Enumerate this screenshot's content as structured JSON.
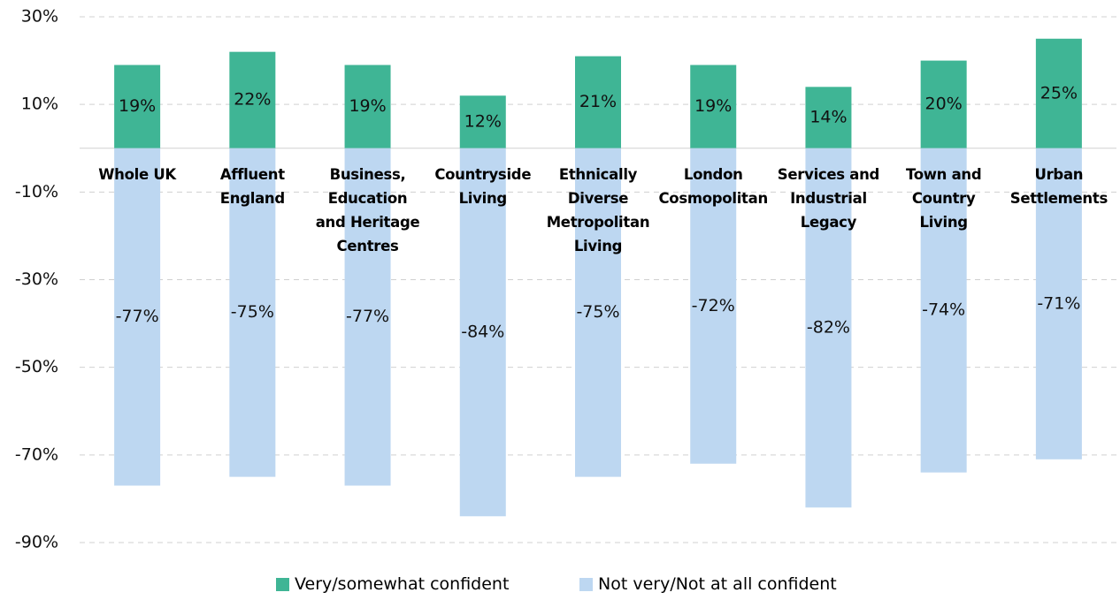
{
  "chart_data": {
    "type": "bar",
    "categories": [
      "Whole UK",
      "Affluent England",
      "Business, Education and Heritage Centres",
      "Countryside Living",
      "Ethnically Diverse Metropolitan Living",
      "London Cosmopolitan",
      "Services and Industrial Legacy",
      "Town and Country Living",
      "Urban Settlements"
    ],
    "series": [
      {
        "name": "Very/somewhat confident",
        "color": "#3fb595",
        "values": [
          19,
          22,
          19,
          12,
          21,
          19,
          14,
          20,
          25
        ],
        "value_labels": [
          "19%",
          "22%",
          "19%",
          "12%",
          "21%",
          "19%",
          "14%",
          "20%",
          "25%"
        ]
      },
      {
        "name": "Not very/Not at all confident",
        "color": "#bdd7f1",
        "values": [
          -77,
          -75,
          -77,
          -84,
          -75,
          -72,
          -82,
          -74,
          -71
        ],
        "value_labels": [
          "-77%",
          "-75%",
          "-77%",
          "-84%",
          "-75%",
          "-72%",
          "-82%",
          "-74%",
          "-71%"
        ]
      }
    ],
    "ylim": [
      -90,
      30
    ],
    "yticks": [
      {
        "value": 30,
        "label": "30%"
      },
      {
        "value": 10,
        "label": "10%"
      },
      {
        "value": -10,
        "label": "-10%"
      },
      {
        "value": -30,
        "label": "-30%"
      },
      {
        "value": -50,
        "label": "-50%"
      },
      {
        "value": -70,
        "label": "-70%"
      },
      {
        "value": -90,
        "label": "-90%"
      }
    ],
    "grid": true,
    "legend": "bottom"
  }
}
